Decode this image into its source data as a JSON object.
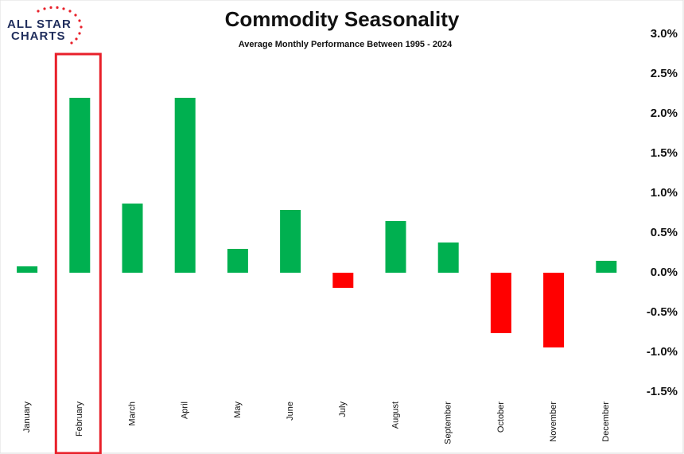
{
  "chart_data": {
    "type": "bar",
    "title": "Commodity Seasonality",
    "subtitle": "Average Monthly Performance Between 1995 - 2024",
    "logo": [
      "ALL STAR",
      "CHARTS"
    ],
    "categories": [
      "January",
      "February",
      "March",
      "April",
      "May",
      "June",
      "July",
      "August",
      "September",
      "October",
      "November",
      "December"
    ],
    "values": [
      0.08,
      2.2,
      0.87,
      2.2,
      0.3,
      0.79,
      -0.19,
      0.65,
      0.38,
      -0.76,
      -0.94,
      0.15
    ],
    "positive_color": "#00b050",
    "negative_color": "#ff0000",
    "highlight": "February",
    "highlight_color": "#e8202a",
    "ylim": [
      -1.5,
      3.0
    ],
    "yticks": [
      {
        "value": 3.0,
        "label": "3.0%"
      },
      {
        "value": 2.5,
        "label": "2.5%"
      },
      {
        "value": 2.0,
        "label": "2.0%"
      },
      {
        "value": 1.5,
        "label": "1.5%"
      },
      {
        "value": 1.0,
        "label": "1.0%"
      },
      {
        "value": 0.5,
        "label": "0.5%"
      },
      {
        "value": 0.0,
        "label": "0.0%"
      },
      {
        "value": -0.5,
        "label": "-0.5%"
      },
      {
        "value": -1.0,
        "label": "-1.0%"
      },
      {
        "value": -1.5,
        "label": "-1.5%"
      }
    ],
    "y_axis_side": "right",
    "grid": false
  }
}
